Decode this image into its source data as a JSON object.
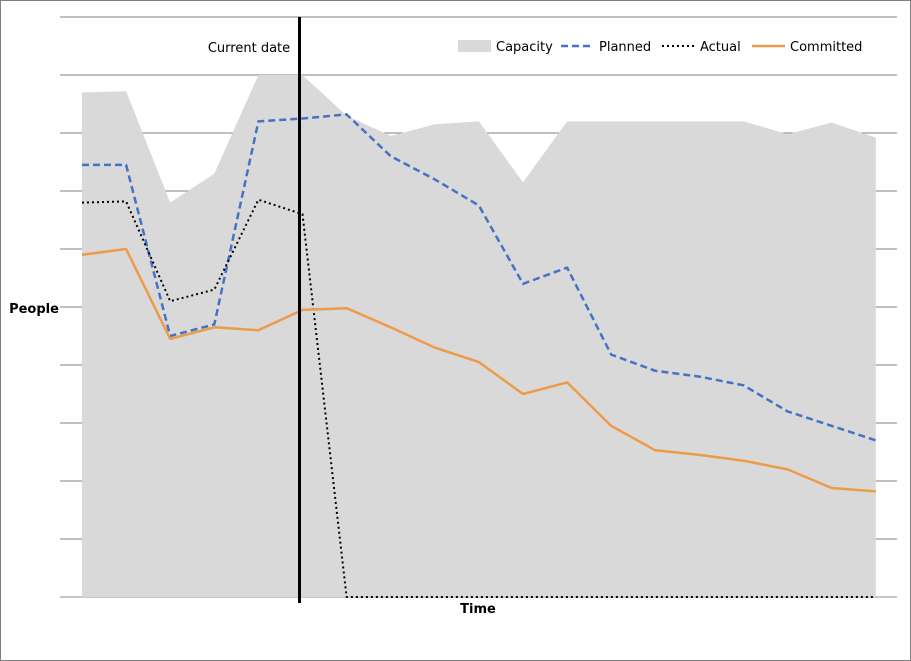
{
  "chart_data": {
    "type": "line",
    "title": "",
    "xlabel": "Time",
    "ylabel": "People",
    "grid": true,
    "legend_position": "top-right",
    "annotation": "Current date",
    "current_index": 5,
    "ylim": [
      0,
      10
    ],
    "x": [
      1,
      2,
      3,
      4,
      5,
      6,
      7,
      8,
      9,
      10,
      11,
      12,
      13,
      14,
      15,
      16,
      17,
      18,
      19,
      20
    ],
    "series": [
      {
        "name": "Capacity",
        "kind": "area",
        "color": "#d9d9d9",
        "values": [
          8.7,
          8.72,
          6.8,
          7.3,
          9.0,
          9.0,
          8.3,
          7.95,
          8.15,
          8.2,
          7.15,
          8.2,
          8.2,
          8.2,
          8.2,
          8.2,
          7.98,
          8.18,
          7.92,
          null
        ]
      },
      {
        "name": "Planned",
        "kind": "line",
        "style": "dashed",
        "color": "#4472c4",
        "values": [
          7.45,
          7.45,
          4.5,
          4.7,
          8.2,
          8.25,
          8.32,
          7.6,
          7.2,
          6.75,
          5.4,
          5.68,
          4.18,
          3.9,
          3.8,
          3.65,
          3.2,
          2.95,
          2.7,
          null
        ]
      },
      {
        "name": "Actual",
        "kind": "line",
        "style": "dotted",
        "color": "#000000",
        "values": [
          6.8,
          6.82,
          5.1,
          5.3,
          6.85,
          6.6,
          0.0,
          0.0,
          0.0,
          0.0,
          0.0,
          0.0,
          0.0,
          0.0,
          0.0,
          0.0,
          0.0,
          0.0,
          0.0,
          null
        ]
      },
      {
        "name": "Committed",
        "kind": "line",
        "style": "solid",
        "color": "#ed9b49",
        "values": [
          5.9,
          6.0,
          4.45,
          4.65,
          4.6,
          4.95,
          4.98,
          4.65,
          4.3,
          4.05,
          3.5,
          3.7,
          2.95,
          2.53,
          2.45,
          2.35,
          2.2,
          1.88,
          1.82,
          null
        ]
      }
    ]
  }
}
